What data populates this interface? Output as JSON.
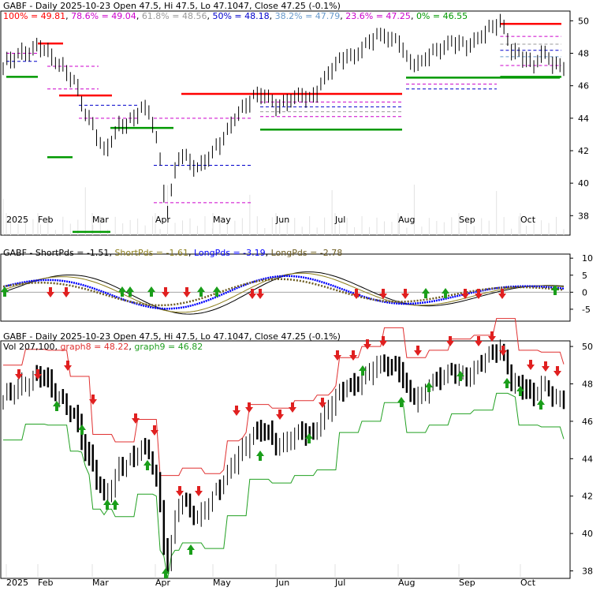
{
  "chart_data": [
    {
      "type": "line",
      "panel": "price-fibonacci",
      "title": "GABF - Daily 2025-10-23 Open 47.5, Hi 47.5, Lo 47.1047, Close 47.25 (-0.1%)",
      "title_parts": {
        "symbol": "GABF - Daily 2025-10-23 Open 47.5, Hi 47.5, Lo 47.1047, Close 47.25 (-0.1%)"
      },
      "fib_levels": [
        {
          "label": "100%",
          "value": 49.81,
          "text": "100% = 49.81",
          "color": "#ff0000"
        },
        {
          "label": "78.6%",
          "value": 49.04,
          "text": "78.6% = 49.04",
          "color": "#cc00cc"
        },
        {
          "label": "61.8%",
          "value": 48.56,
          "text": "61.8% = 48.56",
          "color": "#999999"
        },
        {
          "label": "50%",
          "value": 48.18,
          "text": "50% = 48.18",
          "color": "#0000cc"
        },
        {
          "label": "38.2%",
          "value": 47.79,
          "text": "38.2% = 47.79",
          "color": "#6699cc"
        },
        {
          "label": "23.6%",
          "value": 47.25,
          "text": "23.6% = 47.25",
          "color": "#cc00cc"
        },
        {
          "label": "0%",
          "value": 46.55,
          "text": "0% = 46.55",
          "color": "#009900"
        }
      ],
      "ylim": [
        36.8,
        50.6
      ],
      "y_ticks": [
        "50",
        "48",
        "46",
        "44",
        "42",
        "40",
        "38"
      ],
      "x_ticks": [
        "2025",
        "Feb",
        "Mar",
        "Apr",
        "May",
        "Jun",
        "Jul",
        "Aug",
        "Sep",
        "Oct"
      ],
      "close_path": [
        [
          0,
          47.2
        ],
        [
          4,
          47.8
        ],
        [
          8,
          48.3
        ],
        [
          10,
          48.6
        ],
        [
          12,
          48.0
        ],
        [
          14,
          47.4
        ],
        [
          16,
          47.0
        ],
        [
          18,
          46.6
        ],
        [
          20,
          45.9
        ],
        [
          22,
          44.4
        ],
        [
          24,
          43.5
        ],
        [
          26,
          42.4
        ],
        [
          27,
          41.8
        ],
        [
          29,
          42.6
        ],
        [
          31,
          43.6
        ],
        [
          33,
          43.8
        ],
        [
          35,
          44.0
        ],
        [
          37,
          44.6
        ],
        [
          39,
          44.2
        ],
        [
          40,
          43.7
        ],
        [
          41,
          42.8
        ],
        [
          42,
          41.3
        ],
        [
          43,
          39.6
        ],
        [
          44,
          38.4
        ],
        [
          45,
          39.6
        ],
        [
          46,
          40.8
        ],
        [
          47,
          41.6
        ],
        [
          48,
          41.7
        ],
        [
          50,
          41.2
        ],
        [
          52,
          40.8
        ],
        [
          53,
          41.1
        ],
        [
          55,
          41.7
        ],
        [
          57,
          42.3
        ],
        [
          59,
          42.8
        ],
        [
          61,
          43.5
        ],
        [
          63,
          44.2
        ],
        [
          65,
          44.8
        ],
        [
          67,
          45.4
        ],
        [
          69,
          45.6
        ],
        [
          71,
          45.3
        ],
        [
          72,
          44.9
        ],
        [
          74,
          44.6
        ],
        [
          76,
          45.0
        ],
        [
          78,
          45.3
        ],
        [
          80,
          45.6
        ],
        [
          82,
          45.2
        ],
        [
          84,
          45.6
        ],
        [
          86,
          46.3
        ],
        [
          88,
          47.0
        ],
        [
          90,
          47.6
        ],
        [
          92,
          48.0
        ],
        [
          94,
          47.8
        ],
        [
          96,
          48.2
        ],
        [
          98,
          48.6
        ],
        [
          100,
          49.0
        ],
        [
          102,
          49.2
        ],
        [
          104,
          48.9
        ],
        [
          106,
          48.8
        ],
        [
          108,
          47.6
        ],
        [
          110,
          47.2
        ],
        [
          112,
          47.4
        ],
        [
          114,
          48.0
        ],
        [
          116,
          48.3
        ],
        [
          118,
          48.4
        ],
        [
          120,
          48.6
        ],
        [
          122,
          48.5
        ],
        [
          124,
          48.4
        ],
        [
          126,
          48.8
        ],
        [
          128,
          49.2
        ],
        [
          130,
          49.5
        ],
        [
          132,
          49.7
        ],
        [
          133,
          49.8
        ],
        [
          134,
          49.4
        ],
        [
          135,
          48.8
        ],
        [
          136,
          48.2
        ],
        [
          138,
          48.0
        ],
        [
          140,
          47.8
        ],
        [
          142,
          47.2
        ],
        [
          144,
          47.9
        ],
        [
          146,
          47.6
        ],
        [
          148,
          47.2
        ],
        [
          150,
          47.25
        ]
      ]
    },
    {
      "type": "line",
      "panel": "shortpds-longpds",
      "title": "GABF - ShortPds = -1.51, ShortPds = -1.61, LongPds = -3.19, LongPds = -2.78",
      "series": [
        {
          "name": "GABF - ShortPds = -1.51",
          "color": "#000000"
        },
        {
          "name": "ShortPds = -1.61",
          "color": "#8b7d1a"
        },
        {
          "name": "LongPds = -3.19",
          "color": "#0000ff"
        },
        {
          "name": "LongPds = -2.78",
          "color": "#6b5a1e"
        }
      ],
      "ylim": [
        -8.5,
        11.2
      ],
      "y_ticks": [
        "10",
        "5",
        "0",
        "-5"
      ]
    },
    {
      "type": "line",
      "panel": "price-bands",
      "title": "GABF - Daily 2025-10-23 Open 47.5, Hi 47.5, Lo 47.1047, Close 47.25 (-0.1%)",
      "subtitle_parts": [
        "Vol 207,100",
        "graph8 = 48.22",
        "graph9 = 46.82"
      ],
      "series": [
        {
          "name": "graph8 = 48.22",
          "color": "#e03030"
        },
        {
          "name": "graph9 = 46.82",
          "color": "#22a022"
        }
      ],
      "ylim": [
        37.6,
        50.3
      ],
      "y_ticks": [
        "50",
        "48",
        "46",
        "44",
        "42",
        "40",
        "38"
      ],
      "x_ticks": [
        "2025",
        "Feb",
        "Mar",
        "Apr",
        "May",
        "Jun",
        "Jul",
        "Aug",
        "Sep",
        "Oct"
      ]
    }
  ]
}
